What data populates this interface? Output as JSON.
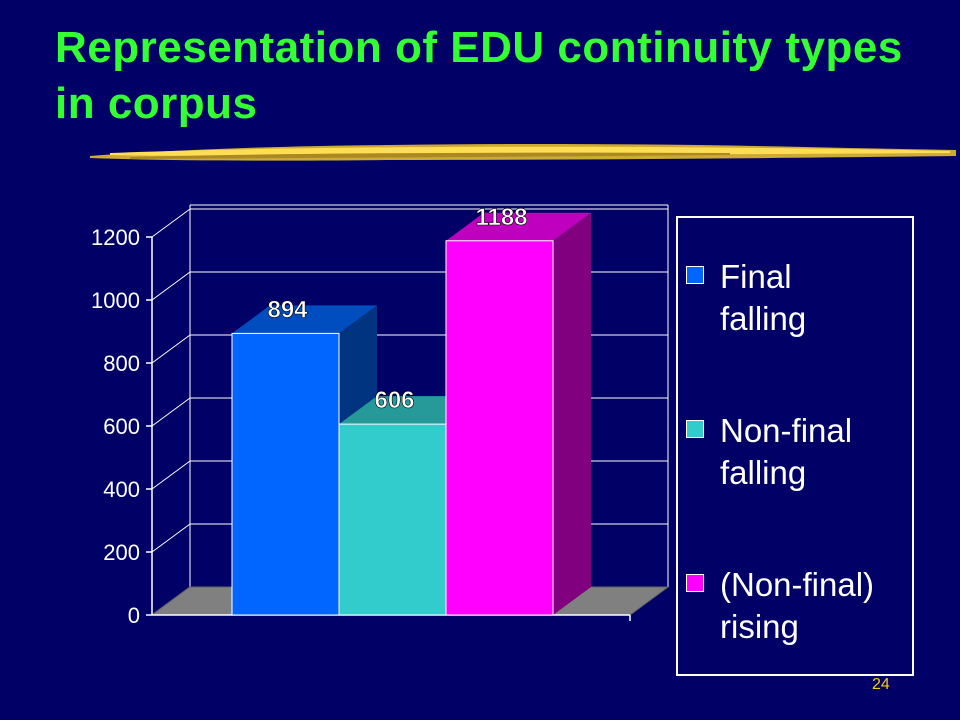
{
  "slide": {
    "title": "Representation of EDU continuity types in corpus",
    "page_number": "24",
    "background_color": "#000066",
    "title_color": "#33ff33"
  },
  "chart_data": {
    "type": "bar",
    "title": "",
    "xlabel": "",
    "ylabel": "",
    "ylim": [
      0,
      1200
    ],
    "yticks": [
      0,
      200,
      400,
      600,
      800,
      1000,
      1200
    ],
    "grid": true,
    "legend_position": "right",
    "series": [
      {
        "name": "Final falling",
        "value": 894,
        "label": "894",
        "color": "#0066ff"
      },
      {
        "name": "Non-final falling",
        "value": 606,
        "label": "606",
        "color": "#33cccc"
      },
      {
        "name": "(Non-final) rising",
        "value": 1188,
        "label": "1188",
        "color": "#ff00ff"
      }
    ]
  },
  "legend": {
    "items": [
      {
        "label": "Final\nfalling",
        "color": "#0066ff"
      },
      {
        "label": "Non-final\nfalling",
        "color": "#33cccc"
      },
      {
        "label": "(Non-final)\nrising",
        "color": "#ff00ff"
      }
    ]
  }
}
